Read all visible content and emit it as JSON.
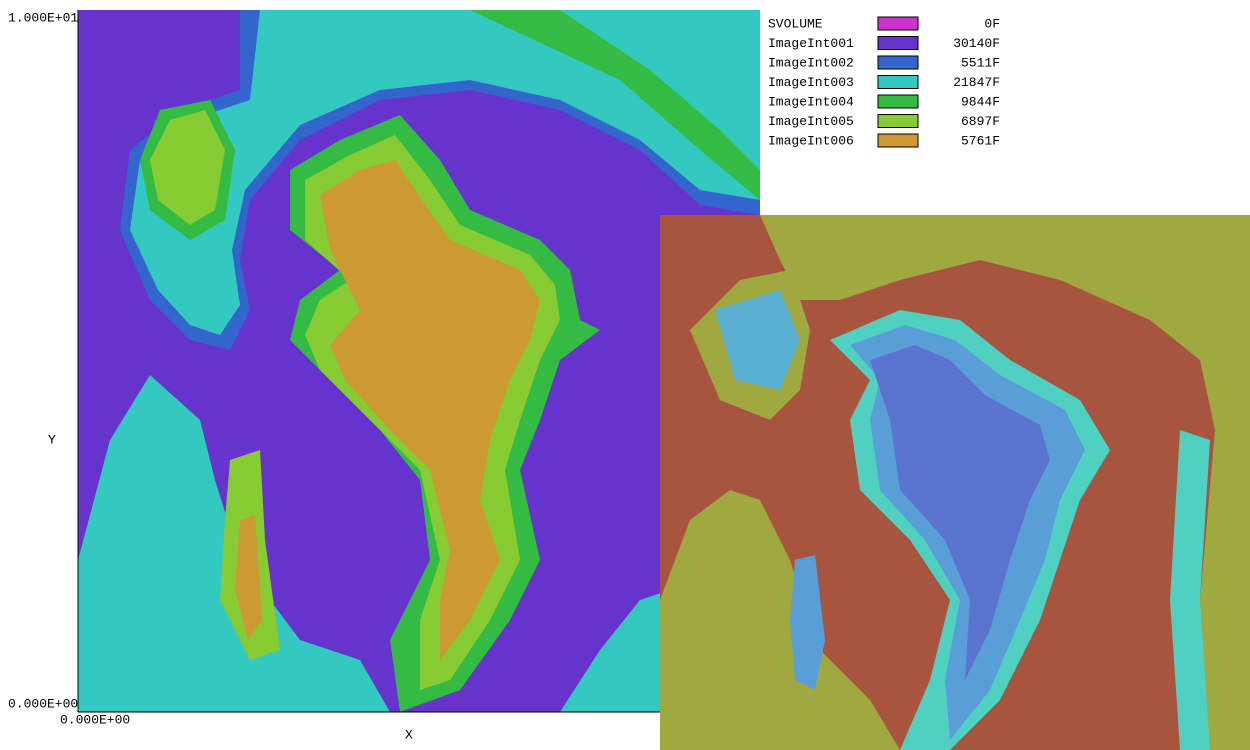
{
  "axes": {
    "y_max": "1.000E+01",
    "y_min": "0.000E+00",
    "x_min": "0.000E+00",
    "y_label": "Y",
    "x_label": "X"
  },
  "legend": {
    "rows": [
      {
        "name": "SVOLUME",
        "color": "#cc33cc",
        "count": "0F"
      },
      {
        "name": "ImageInt001",
        "color": "#6633cc",
        "count": "30140F"
      },
      {
        "name": "ImageInt002",
        "color": "#3366cc",
        "count": "5511F"
      },
      {
        "name": "ImageInt003",
        "color": "#33c9c0",
        "count": "21847F"
      },
      {
        "name": "ImageInt004",
        "color": "#33bb44",
        "count": "9844F"
      },
      {
        "name": "ImageInt005",
        "color": "#88cc33",
        "count": "6897F"
      },
      {
        "name": "ImageInt006",
        "color": "#cc9933",
        "count": "5761F"
      }
    ]
  }
}
